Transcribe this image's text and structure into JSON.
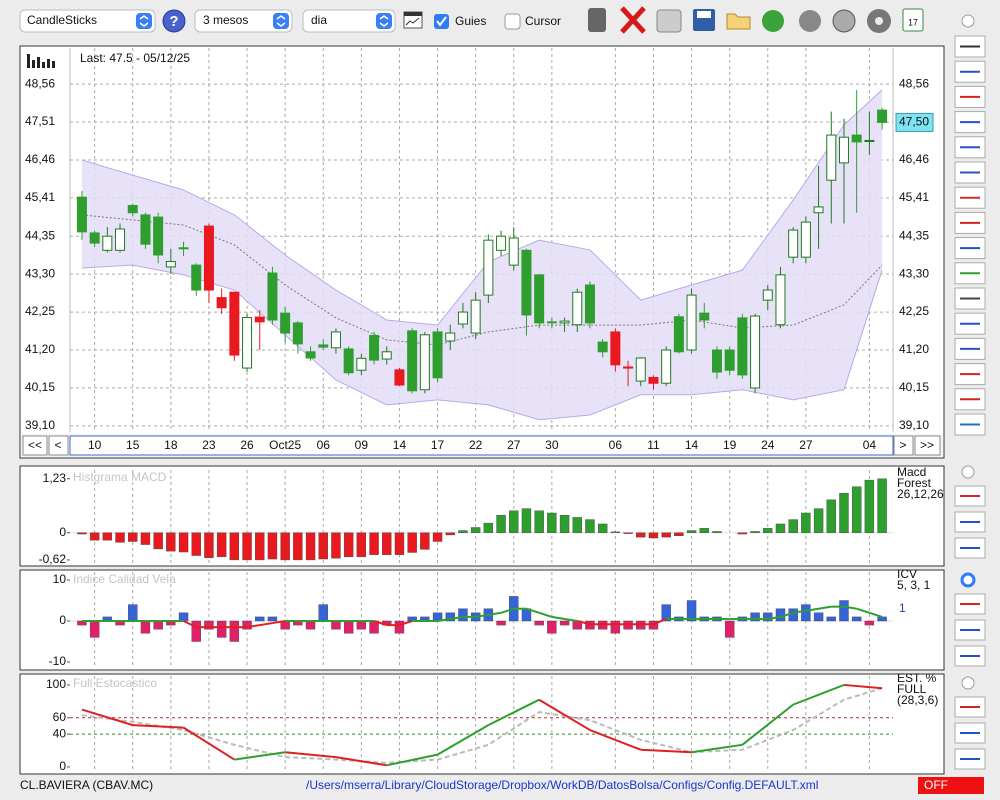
{
  "toolbar": {
    "chart_type": "CandleSticks",
    "period": "3 mesos",
    "interval": "dia",
    "guides_label": "Guies",
    "cursor_label": "Cursor"
  },
  "navigation": {
    "first": "<<",
    "prev": "<",
    "next": ">",
    "last": ">>"
  },
  "footer": {
    "symbol": "CL.BAVIERA (CBAV.MC)",
    "config_path": "/Users/mserra/Library/CloudStorage/Dropbox/WorkDB/DatosBolsa/Configs/Config.DEFAULT.xml",
    "status": "OFF"
  },
  "chart_data": [
    {
      "type": "candlestick",
      "annotation": "Last: 47.5 - 05/12/25",
      "open": [
        45.43,
        44.44,
        43.96,
        43.96,
        45.2,
        44.94,
        44.88,
        43.5,
        44.03,
        43.55,
        44.63,
        42.65,
        42.8,
        40.7,
        42.11,
        43.33,
        42.22,
        41.95,
        41.15,
        41.34,
        41.26,
        41.23,
        40.64,
        41.6,
        40.95,
        40.65,
        41.73,
        40.1,
        41.7,
        41.45,
        41.92,
        41.67,
        42.72,
        43.96,
        43.55,
        43.96,
        43.28,
        41.98,
        41.95,
        41.9,
        43.0,
        41.42,
        41.7,
        40.73,
        40.34,
        40.44,
        40.28,
        42.12,
        41.2,
        42.22,
        41.2,
        41.2,
        42.09,
        40.15,
        42.58,
        41.9,
        43.77,
        43.77,
        45.0,
        45.9,
        46.38,
        47.15,
        46.98,
        47.84
      ],
      "high": [
        45.6,
        44.5,
        44.6,
        44.7,
        45.25,
        45.0,
        45.0,
        44.0,
        44.2,
        43.6,
        44.7,
        42.9,
        42.8,
        42.2,
        42.3,
        43.5,
        42.4,
        42.0,
        41.3,
        41.5,
        41.8,
        41.3,
        41.1,
        41.7,
        41.3,
        40.7,
        41.8,
        41.7,
        41.8,
        41.9,
        42.5,
        42.8,
        44.4,
        44.5,
        44.6,
        44.0,
        43.3,
        42.1,
        42.1,
        42.9,
        43.1,
        41.5,
        41.8,
        40.9,
        41.0,
        40.5,
        41.3,
        42.2,
        42.9,
        42.5,
        41.3,
        41.3,
        42.2,
        42.2,
        43.0,
        43.5,
        44.6,
        44.9,
        46.3,
        47.8,
        47.6,
        48.4,
        47.8,
        47.9
      ],
      "low": [
        44.25,
        44.05,
        43.9,
        43.9,
        44.9,
        44.0,
        43.6,
        43.3,
        43.8,
        42.7,
        42.5,
        42.2,
        40.9,
        40.6,
        41.2,
        41.9,
        41.4,
        41.1,
        40.9,
        41.2,
        41.1,
        40.5,
        40.5,
        40.8,
        40.8,
        40.2,
        40.0,
        40.0,
        40.3,
        41.2,
        41.8,
        41.5,
        42.5,
        43.8,
        43.4,
        41.6,
        41.8,
        41.8,
        41.7,
        41.7,
        41.8,
        41.0,
        40.6,
        40.2,
        40.2,
        40.1,
        40.2,
        41.1,
        41.1,
        41.8,
        40.4,
        40.5,
        40.4,
        40.0,
        42.3,
        41.8,
        43.6,
        43.6,
        44.0,
        44.7,
        44.7,
        45.0,
        46.6,
        47.3
      ],
      "close": [
        44.47,
        44.16,
        44.35,
        44.55,
        45.0,
        44.13,
        43.83,
        43.65,
        44.0,
        42.86,
        42.86,
        42.37,
        41.06,
        42.1,
        41.98,
        42.03,
        41.67,
        41.37,
        40.98,
        41.28,
        41.7,
        40.57,
        40.97,
        40.92,
        41.15,
        40.23,
        40.07,
        41.62,
        40.43,
        41.67,
        42.25,
        42.58,
        44.24,
        44.35,
        44.3,
        42.17,
        41.95,
        41.96,
        42.0,
        42.8,
        41.95,
        41.15,
        40.79,
        40.7,
        40.98,
        40.28,
        41.2,
        41.15,
        42.72,
        42.03,
        40.59,
        40.64,
        40.51,
        42.14,
        42.86,
        43.28,
        44.52,
        44.74,
        45.16,
        47.15,
        47.09,
        46.96,
        47.0,
        47.5
      ],
      "colors": [
        "#2e9e2e",
        "#2e9e2e",
        "#ffffff",
        "#ffffff",
        "#2e9e2e",
        "#2e9e2e",
        "#2e9e2e",
        "#ffffff",
        "#2e9e2e",
        "#2e9e2e",
        "#e8191f",
        "#e8191f",
        "#e8191f",
        "#ffffff",
        "#e8191f",
        "#2e9e2e",
        "#2e9e2e",
        "#2e9e2e",
        "#2e9e2e",
        "#2e9e2e",
        "#ffffff",
        "#2e9e2e",
        "#ffffff",
        "#2e9e2e",
        "#ffffff",
        "#e8191f",
        "#2e9e2e",
        "#ffffff",
        "#2e9e2e",
        "#ffffff",
        "#ffffff",
        "#ffffff",
        "#ffffff",
        "#ffffff",
        "#ffffff",
        "#2e9e2e",
        "#2e9e2e",
        "#2e9e2e",
        "#ffffff",
        "#ffffff",
        "#2e9e2e",
        "#2e9e2e",
        "#e8191f",
        "#e8191f",
        "#ffffff",
        "#e8191f",
        "#ffffff",
        "#2e9e2e",
        "#ffffff",
        "#2e9e2e",
        "#2e9e2e",
        "#2e9e2e",
        "#2e9e2e",
        "#ffffff",
        "#ffffff",
        "#ffffff",
        "#ffffff",
        "#ffffff",
        "#ffffff",
        "#ffffff",
        "#ffffff",
        "#2e9e2e",
        "#ffffff",
        "#2e9e2e"
      ],
      "outline_color": "#1f7a1f",
      "bands": {
        "x": [
          0,
          4,
          8,
          12,
          16,
          20,
          24,
          28,
          32,
          36,
          40,
          44,
          48,
          52,
          56,
          60,
          63
        ],
        "upper": [
          46.46,
          46.04,
          45.63,
          44.94,
          43.83,
          42.86,
          42.03,
          41.89,
          43.64,
          44.24,
          43.97,
          42.58,
          43.0,
          43.41,
          45.35,
          47.43,
          48.4
        ],
        "lower": [
          43.47,
          43.55,
          43.28,
          42.86,
          41.62,
          40.37,
          39.68,
          39.82,
          39.68,
          39.27,
          39.4,
          39.96,
          39.96,
          40.1,
          39.82,
          40.1,
          43.41
        ],
        "middle": [
          44.94,
          44.8,
          44.66,
          44.11,
          43.0,
          42.09,
          41.48,
          41.34,
          41.7,
          41.89,
          41.89,
          41.89,
          42.03,
          41.81,
          41.89,
          42.45,
          43.55
        ],
        "fill": "#e4ddf8",
        "edge": "#b8a9ea",
        "middle_color": "#777777"
      },
      "last_price": {
        "value": 47.5,
        "label": "47,50"
      },
      "xlim": [
        -0.94,
        63.86
      ],
      "ylim": [
        38.93,
        49.56
      ],
      "yticks": [
        {
          "value": 48.56,
          "label": "48,56"
        },
        {
          "value": 47.51,
          "label": "47,51"
        },
        {
          "value": 46.46,
          "label": "46,46"
        },
        {
          "value": 45.41,
          "label": "45,41"
        },
        {
          "value": 44.35,
          "label": "44,35"
        },
        {
          "value": 43.3,
          "label": "43,30"
        },
        {
          "value": 42.25,
          "label": "42,25"
        },
        {
          "value": 41.2,
          "label": "41,20"
        },
        {
          "value": 40.15,
          "label": "40,15"
        },
        {
          "value": 39.1,
          "label": "39,10"
        }
      ],
      "xticks": [
        {
          "value": 1,
          "label": "10"
        },
        {
          "value": 4,
          "label": "15"
        },
        {
          "value": 7,
          "label": "18"
        },
        {
          "value": 10,
          "label": "23"
        },
        {
          "value": 13,
          "label": "26"
        },
        {
          "value": 16,
          "label": "Oct25"
        },
        {
          "value": 19,
          "label": "06"
        },
        {
          "value": 22,
          "label": "09"
        },
        {
          "value": 25,
          "label": "14"
        },
        {
          "value": 28,
          "label": "17"
        },
        {
          "value": 31,
          "label": "22"
        },
        {
          "value": 34,
          "label": "27"
        },
        {
          "value": 37,
          "label": "30"
        },
        {
          "value": 42,
          "label": "06"
        },
        {
          "value": 45,
          "label": "11"
        },
        {
          "value": 48,
          "label": "14"
        },
        {
          "value": 51,
          "label": "19"
        },
        {
          "value": 54,
          "label": "24"
        },
        {
          "value": 57,
          "label": "27"
        },
        {
          "value": 62,
          "label": "04"
        }
      ],
      "grid": true
    },
    {
      "type": "bar",
      "title": "Histgrama MACD",
      "legend": [
        "Macd",
        "Forest",
        "26,12,26"
      ],
      "values": [
        -0.03,
        -0.17,
        -0.17,
        -0.22,
        -0.2,
        -0.27,
        -0.37,
        -0.42,
        -0.44,
        -0.52,
        -0.57,
        -0.55,
        -0.62,
        -0.62,
        -0.62,
        -0.6,
        -0.62,
        -0.62,
        -0.62,
        -0.6,
        -0.58,
        -0.55,
        -0.55,
        -0.5,
        -0.5,
        -0.5,
        -0.45,
        -0.38,
        -0.2,
        -0.05,
        0.05,
        0.12,
        0.22,
        0.4,
        0.5,
        0.55,
        0.5,
        0.45,
        0.4,
        0.35,
        0.3,
        0.2,
        0.02,
        -0.02,
        -0.1,
        -0.12,
        -0.1,
        -0.07,
        0.05,
        0.1,
        0.03,
        0.0,
        -0.03,
        0.03,
        0.1,
        0.2,
        0.3,
        0.45,
        0.55,
        0.75,
        0.9,
        1.05,
        1.2,
        1.23
      ],
      "colors": {
        "positive": "#2e9e2e",
        "negative": "#e8191f"
      },
      "xlim": [
        -0.94,
        63.86
      ],
      "ylim": [
        -0.69,
        1.43
      ],
      "yticks": [
        {
          "value": 1.23,
          "label": "1,23"
        },
        0,
        {
          "value": -0.62,
          "label": "-0,62"
        }
      ],
      "grid": true
    },
    {
      "type": "bar",
      "title": "Indice Calidad Vela",
      "legend": [
        "ICV",
        "5, 3, 1"
      ],
      "current": 1,
      "values": [
        -1,
        -4,
        1,
        -1,
        4,
        -3,
        -2,
        -1,
        2,
        -5,
        -2,
        -4,
        -5,
        -2,
        1,
        1,
        -2,
        -1,
        -2,
        4,
        -2,
        -3,
        -2,
        -3,
        -1,
        -3,
        1,
        1,
        2,
        2,
        3,
        2,
        3,
        -1,
        6,
        3,
        -1,
        -3,
        -1,
        -2,
        -2,
        -2,
        -3,
        -2,
        -2,
        -2,
        4,
        1,
        5,
        1,
        1,
        -4,
        1,
        2,
        2,
        3,
        3,
        4,
        2,
        1,
        5,
        1,
        -1,
        1
      ],
      "signal": [
        0,
        0,
        0,
        0,
        0,
        0,
        0,
        0,
        0,
        -1.5,
        -1.5,
        -1.5,
        -1.5,
        -1.5,
        -1,
        -0.5,
        0,
        0,
        0,
        0,
        0,
        0,
        0,
        0,
        -1,
        -1,
        0,
        0,
        0,
        0.5,
        1,
        1,
        1.5,
        2,
        3,
        3,
        2,
        1,
        0.5,
        0,
        -0.8,
        -0.8,
        -0.8,
        -0.8,
        -0.8,
        -0.8,
        0.5,
        0.5,
        0.5,
        0.5,
        0.5,
        0.5,
        0.5,
        0.5,
        0.5,
        1,
        2,
        2.5,
        3,
        3.5,
        3.5,
        3,
        2,
        1
      ],
      "colors": {
        "positive": "#3563d8",
        "negative": "#e0206a",
        "signal_positive": "#2ca02c",
        "signal_negative": "#e02020",
        "current": "#2040c0"
      },
      "xlim": [
        -0.94,
        63.86
      ],
      "ylim": [
        -11.46,
        11.95
      ],
      "yticks": [
        10,
        0,
        -10
      ],
      "grid": true
    },
    {
      "type": "line",
      "title": "Full Estocastico",
      "legend": [
        "EST. %",
        "FULL",
        "(28,3,6)"
      ],
      "x": [
        0,
        4,
        8,
        12,
        16,
        20,
        24,
        28,
        32,
        36,
        40,
        44,
        48,
        52,
        56,
        60,
        63
      ],
      "series": [
        {
          "values": [
            70,
            51,
            48,
            9,
            18,
            12,
            2,
            15,
            51,
            82,
            45,
            21,
            18,
            27,
            76,
            100,
            96
          ],
          "colors": {
            "rising": "#2ca02c",
            "falling": "#e02020"
          }
        },
        {
          "values": [
            63,
            55,
            45,
            27,
            12,
            9,
            5,
            9,
            27,
            67,
            57,
            33,
            18,
            21,
            45,
            82,
            96
          ],
          "color": "#bbbbbb"
        }
      ],
      "guides": [
        {
          "value": 60,
          "color": "#b03030"
        },
        {
          "value": 40,
          "color": "#2e8b2e"
        }
      ],
      "xlim": [
        -0.94,
        63.86
      ],
      "ylim": [
        -3.7,
        110.9
      ],
      "yticks": [
        100,
        60,
        40,
        0
      ],
      "grid": true
    }
  ]
}
